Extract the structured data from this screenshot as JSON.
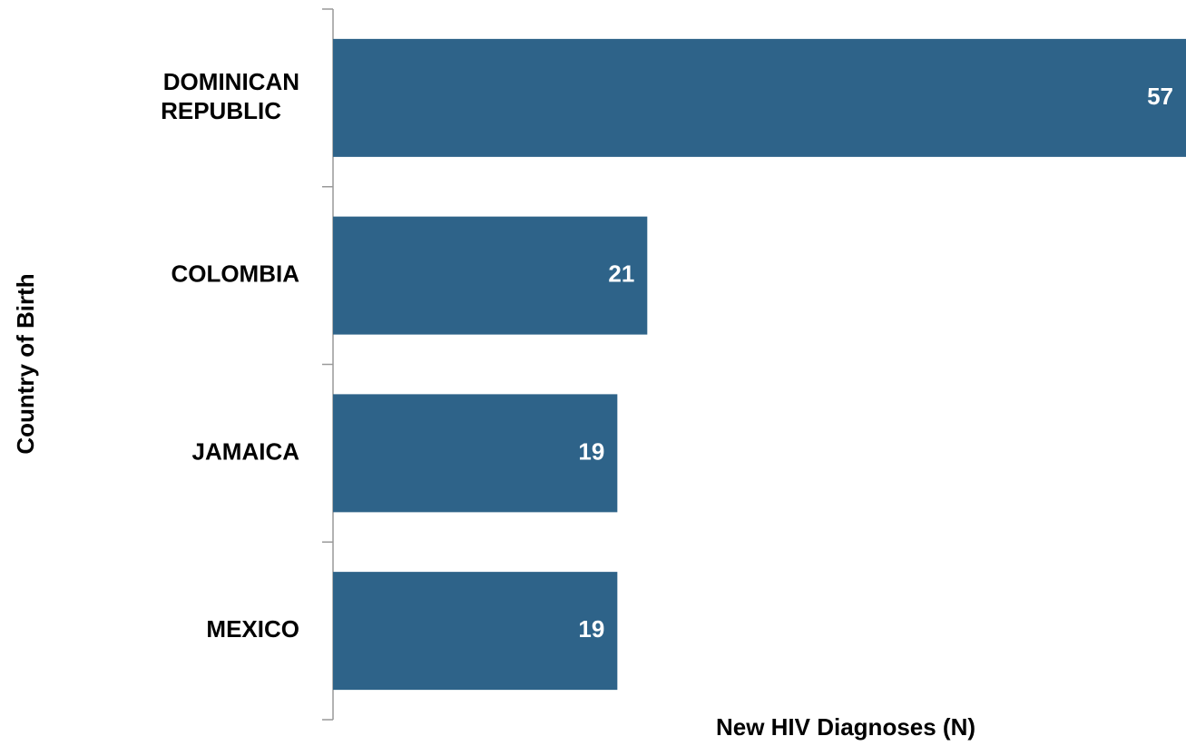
{
  "chart_data": {
    "type": "hbar",
    "categories": [
      "DOMINICAN REPUBLIC",
      "COLOMBIA",
      "JAMAICA",
      "MEXICO"
    ],
    "values": [
      57,
      21,
      19,
      19
    ],
    "color": "#2e6389",
    "xlim": [
      0,
      57
    ],
    "xlabel": "New HIV Diagnoses (N)",
    "ylabel": "Country of Birth"
  }
}
